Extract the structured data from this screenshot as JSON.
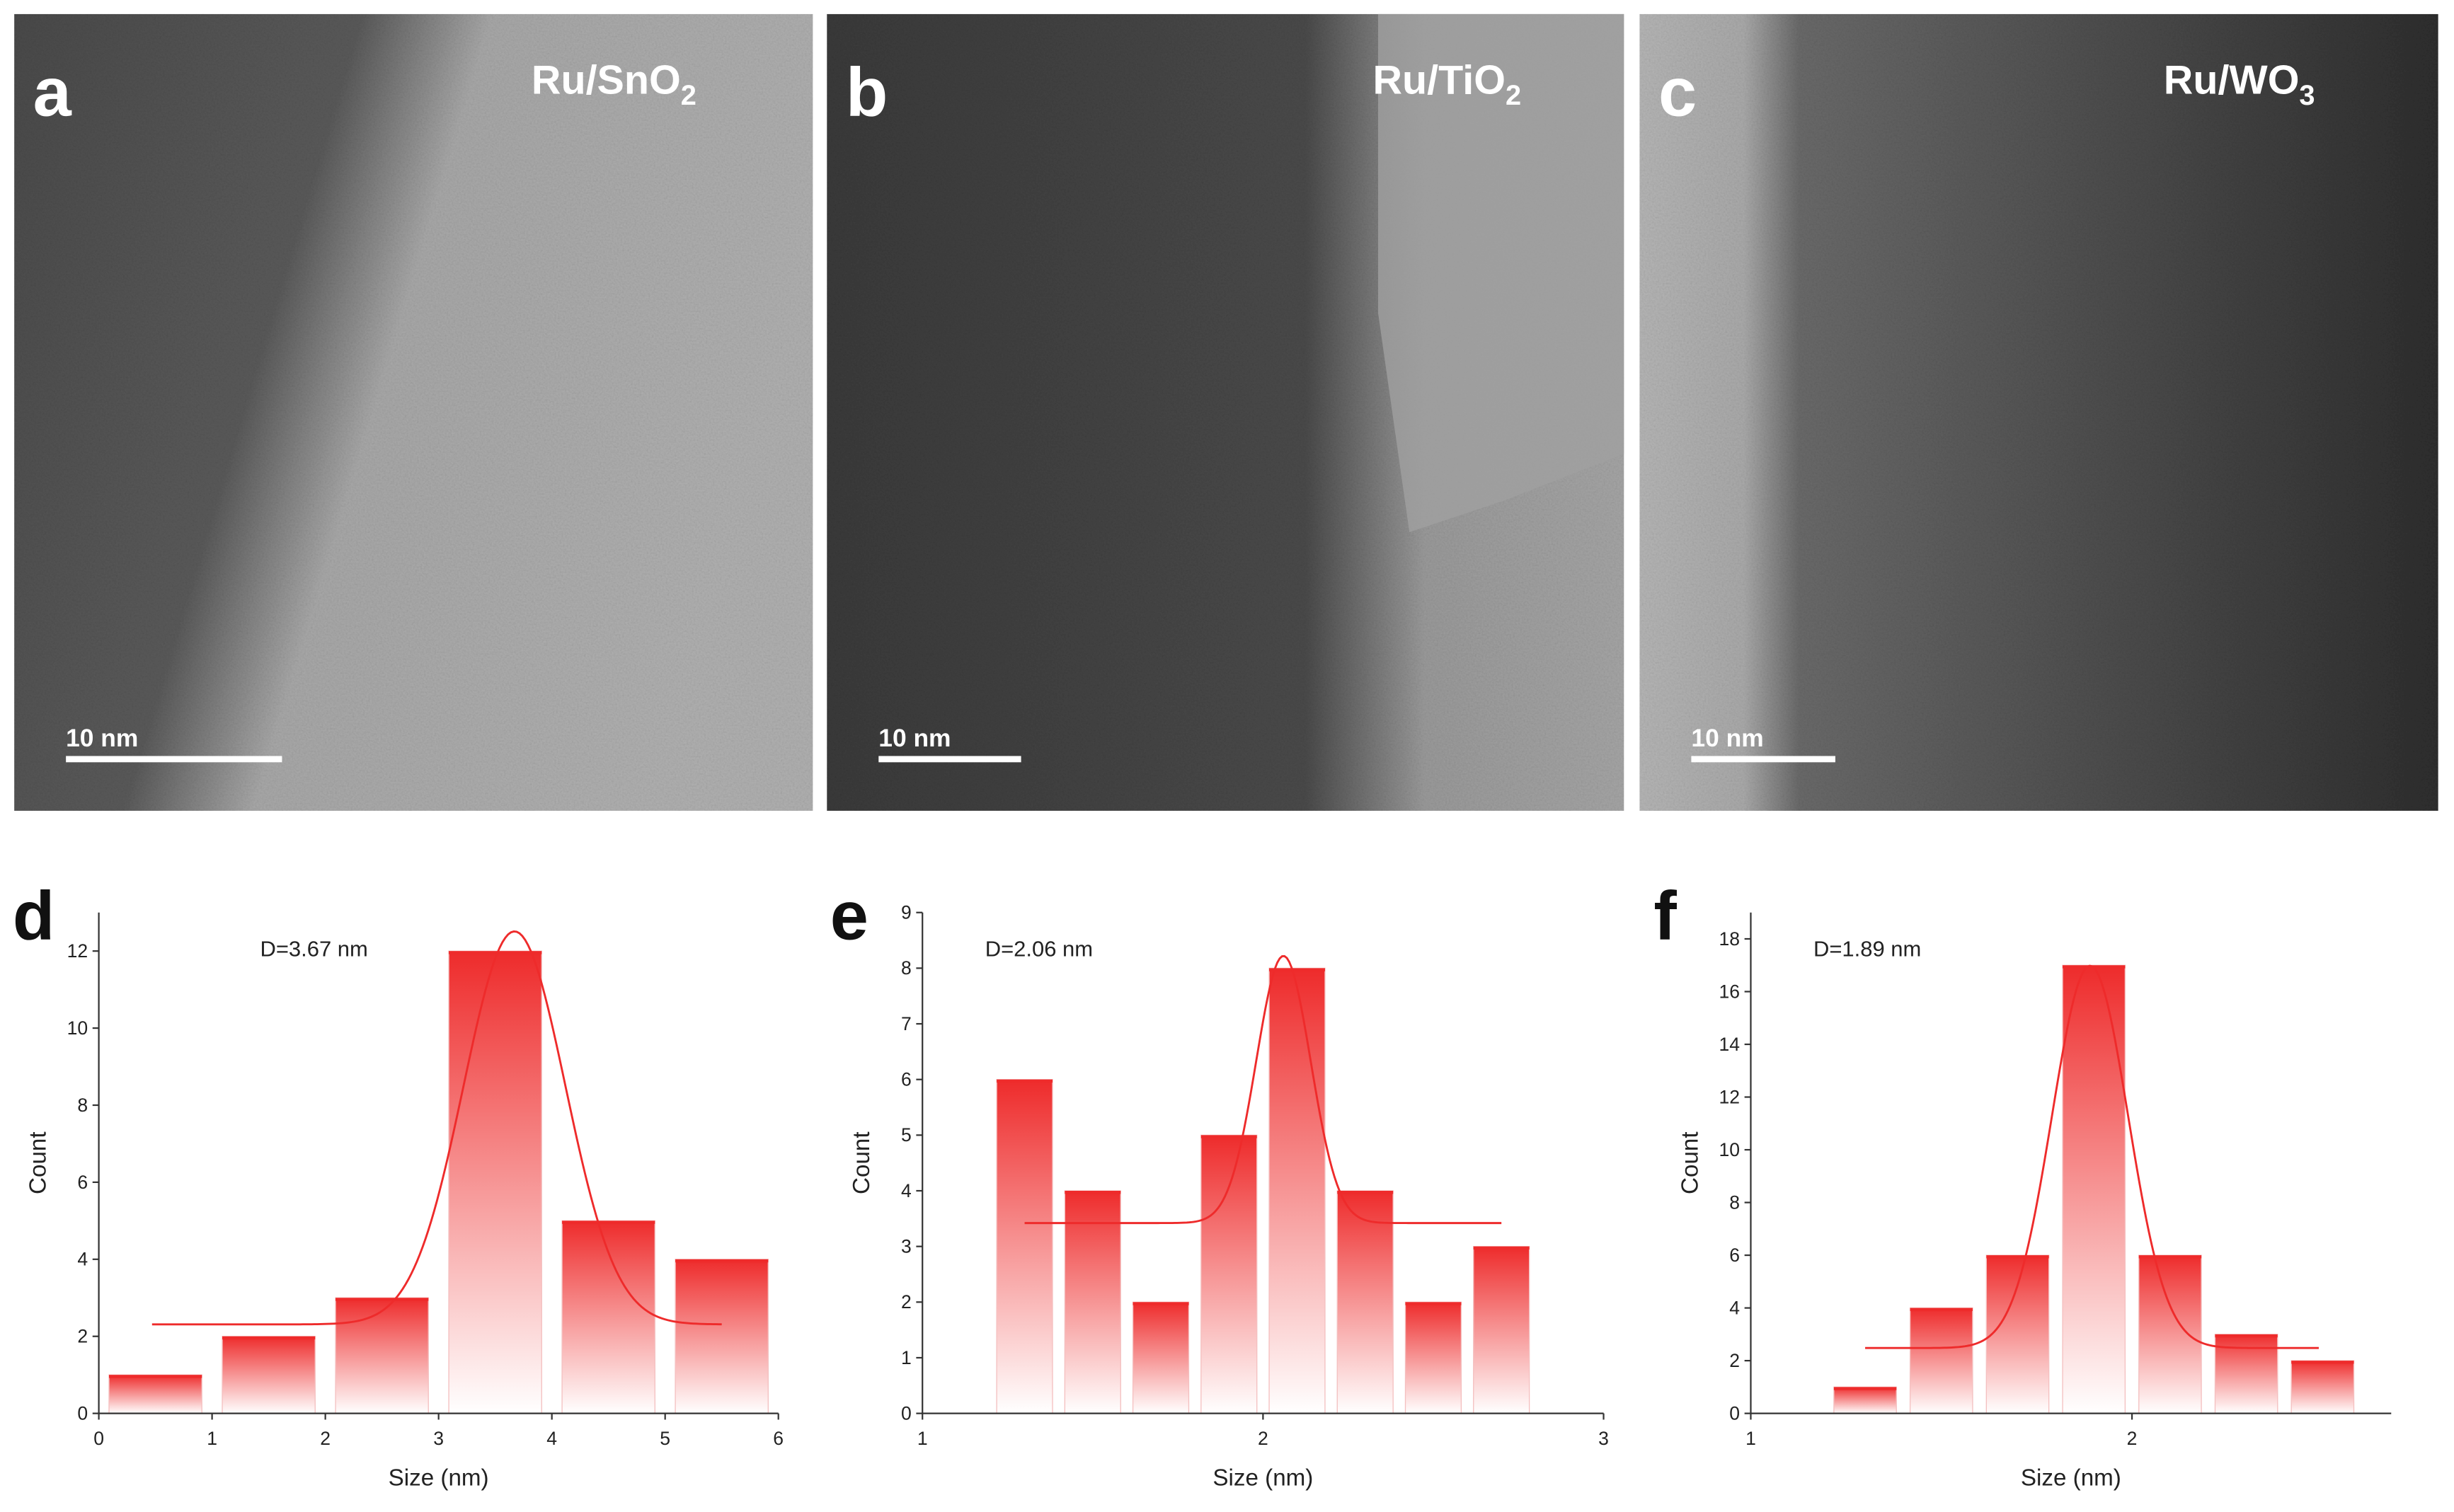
{
  "panels": [
    {
      "letter": "a",
      "label": {
        "main": "Ru/SnO",
        "sub": "2"
      },
      "scale_bar": "10 nm"
    },
    {
      "letter": "b",
      "label": {
        "main": "Ru/TiO",
        "sub": "2"
      },
      "scale_bar": "10 nm"
    },
    {
      "letter": "c",
      "label": {
        "main": "Ru/WO",
        "sub": "3"
      },
      "scale_bar": "10 nm"
    }
  ],
  "chart_data": [
    {
      "type": "histogram",
      "letter": "d",
      "annotation": "D=3.67 nm",
      "x_label": "Size (nm)",
      "y_label": "Count",
      "color": "#ee2b2b",
      "bins": [
        0,
        1,
        2,
        3,
        4,
        5,
        6
      ],
      "counts": [
        1,
        2,
        3,
        12,
        5,
        4
      ],
      "xlim": [
        0,
        6
      ],
      "xticks": [
        0,
        1,
        2,
        3,
        4,
        5,
        6
      ],
      "ylim": [
        0,
        13
      ],
      "yticks": [
        0,
        2,
        4,
        6,
        8,
        10,
        12
      ],
      "fit": {
        "center": 3.67,
        "amplitude": 10.2,
        "sigma": 0.45,
        "offset": 2.31,
        "xrange": [
          0.47,
          5.5
        ]
      }
    },
    {
      "type": "histogram",
      "letter": "e",
      "annotation": "D=2.06 nm",
      "x_label": "Size (nm)",
      "y_label": "Count",
      "color": "#ee2b2b",
      "bins": [
        1.2,
        1.4,
        1.6,
        1.8,
        2.0,
        2.2,
        2.4,
        2.6,
        2.8
      ],
      "counts": [
        6,
        4,
        2,
        5,
        8,
        4,
        2,
        3
      ],
      "xlim": [
        1,
        3
      ],
      "xticks": [
        1,
        2,
        3
      ],
      "ylim": [
        0,
        9
      ],
      "yticks": [
        0,
        1,
        2,
        3,
        4,
        5,
        6,
        7,
        8,
        9
      ],
      "fit": {
        "center": 2.06,
        "amplitude": 4.8,
        "sigma": 0.08,
        "offset": 3.42,
        "xrange": [
          1.3,
          2.7
        ]
      }
    },
    {
      "type": "histogram",
      "letter": "f",
      "annotation": "D=1.89 nm",
      "x_label": "Size (nm)",
      "y_label": "Count",
      "color": "#ee2b2b",
      "bins": [
        1.2,
        1.4,
        1.6,
        1.8,
        2.0,
        2.2,
        2.4,
        2.6
      ],
      "counts": [
        1,
        4,
        6,
        17,
        6,
        3,
        2
      ],
      "xlim": [
        1,
        2.68
      ],
      "xticks": [
        1,
        2
      ],
      "ylim": [
        0,
        19
      ],
      "yticks": [
        0,
        2,
        4,
        6,
        8,
        10,
        12,
        14,
        16,
        18
      ],
      "fit": {
        "center": 1.89,
        "amplitude": 14.5,
        "sigma": 0.1,
        "offset": 2.48,
        "xrange": [
          1.3,
          2.49
        ]
      }
    }
  ]
}
